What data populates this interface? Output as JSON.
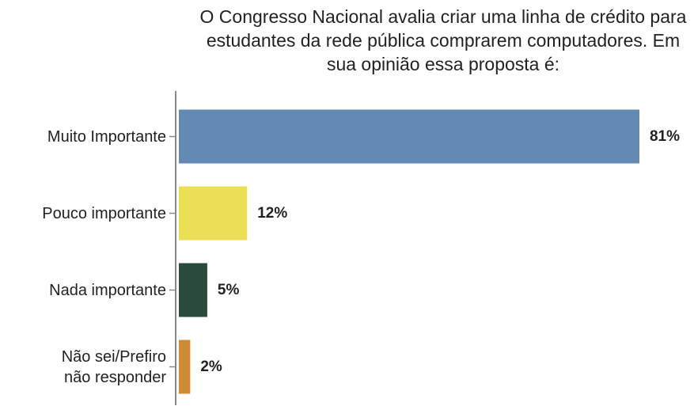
{
  "chart_data": {
    "type": "hbar",
    "title": "O Congresso Nacional avalia criar uma linha de crédito para estudantes da rede pública comprarem computadores. Em sua opinião essa proposta é:",
    "categories": [
      "Muito Importante",
      "Pouco importante",
      "Nada importante",
      "Não sei/Prefiro\nnão responder"
    ],
    "values": [
      81,
      12,
      5,
      2
    ],
    "value_labels": [
      "81%",
      "12%",
      "5%",
      "2%"
    ],
    "colors": [
      "#6489b2",
      "#ebe055",
      "#2a4a3c",
      "#d08a35"
    ]
  }
}
